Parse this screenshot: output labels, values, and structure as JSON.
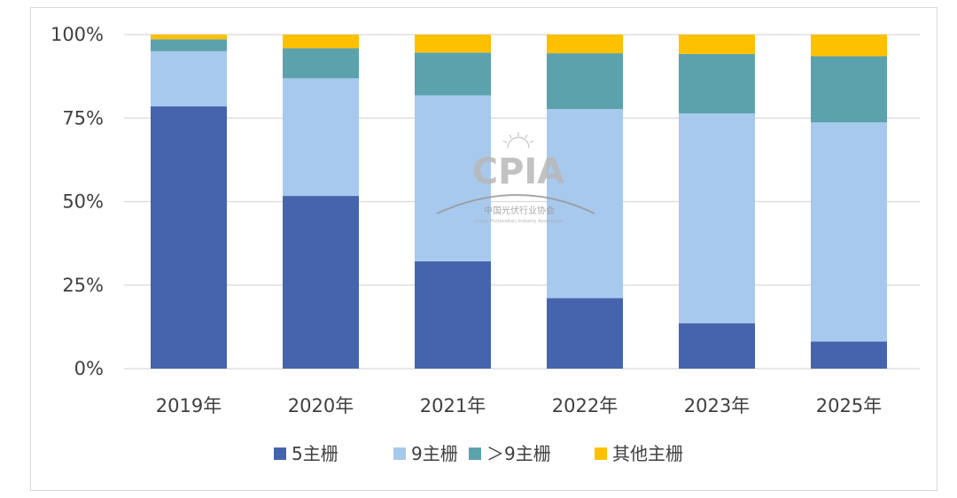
{
  "chart_data": {
    "type": "bar",
    "stacked": true,
    "percent": true,
    "categories": [
      "2019年",
      "2020年",
      "2021年",
      "2022年",
      "2023年",
      "2025年"
    ],
    "series": [
      {
        "name": "5主栅",
        "color": "#4664ad",
        "values": [
          78.5,
          51.7,
          32.1,
          21.1,
          13.6,
          8.1
        ]
      },
      {
        "name": "9主栅",
        "color": "#a8c9ee",
        "values": [
          16.5,
          35.2,
          49.7,
          56.6,
          62.8,
          65.6
        ]
      },
      {
        "name": "＞9主栅",
        "color": "#5ba2ad",
        "values": [
          3.6,
          9.0,
          12.8,
          16.7,
          17.8,
          19.8
        ]
      },
      {
        "name": "其他主栅",
        "color": "#ffc000",
        "values": [
          1.4,
          4.1,
          5.4,
          5.6,
          5.8,
          6.5
        ]
      }
    ],
    "yticks": [
      "0%",
      "25%",
      "50%",
      "75%",
      "100%"
    ],
    "ylim": [
      0,
      100
    ],
    "grid": true,
    "legend": "bottom",
    "title": "",
    "xlabel": "",
    "ylabel": ""
  },
  "watermark": {
    "logo_text": "CPIA",
    "org_name_cn": "中国光伏行业协会",
    "org_name_en": "China Photovoltaic Industry Association"
  }
}
